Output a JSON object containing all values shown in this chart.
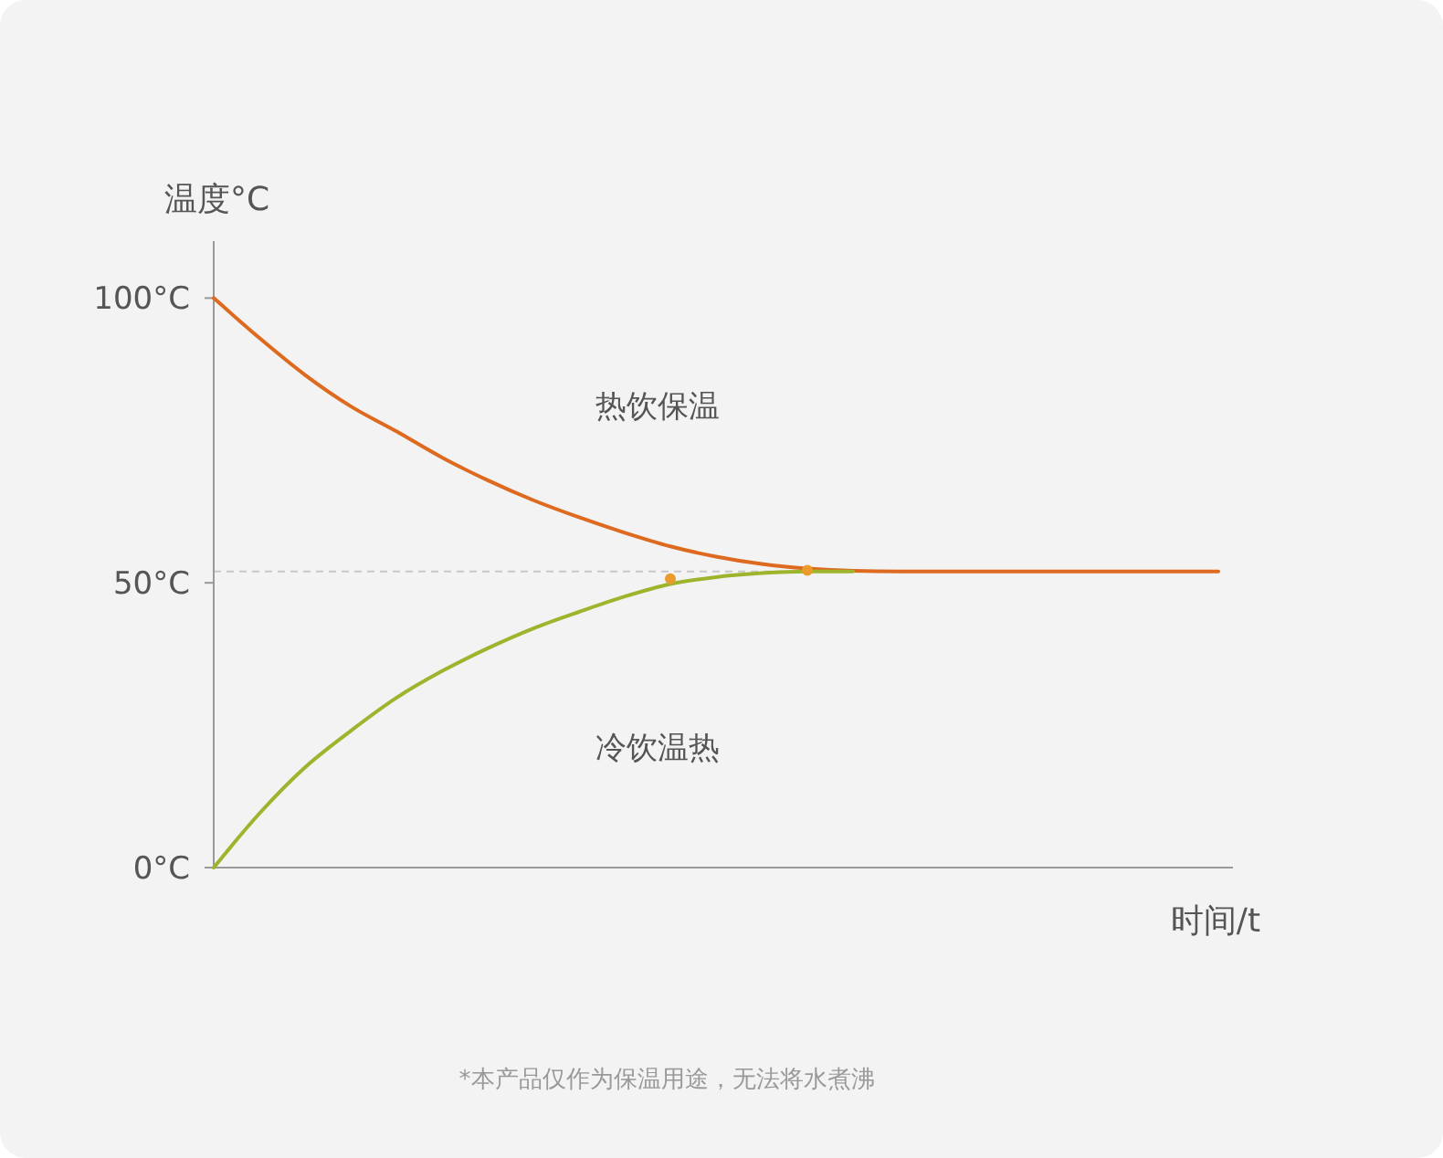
{
  "chart_data": {
    "type": "line",
    "ylabel": "温度°C",
    "xlabel": "时间/t",
    "categories": [
      null,
      null,
      null,
      null,
      null,
      null,
      null,
      null,
      null,
      null,
      null,
      null,
      null,
      null,
      null,
      null,
      null,
      null,
      null,
      null,
      null,
      null,
      null
    ],
    "ylim": [
      0,
      110
    ],
    "yticks": [
      {
        "value": 0,
        "label": "0°C"
      },
      {
        "value": 50,
        "label": "50°C"
      },
      {
        "value": 100,
        "label": "100°C"
      }
    ],
    "tick_labels": "y",
    "grid": false,
    "series": [
      {
        "color": "#dd6a1f",
        "values": [
          100,
          93,
          86.5,
          81,
          76.6,
          72,
          68,
          64.5,
          61.5,
          58.8,
          56.4,
          54.6,
          53.3,
          52.5,
          52.1,
          52,
          52,
          52,
          52,
          52,
          52,
          52,
          52
        ]
      },
      {
        "color": "#9cb52c",
        "values": [
          0,
          9.5,
          17.6,
          24,
          29.8,
          34.5,
          38.5,
          42,
          44.9,
          47.6,
          49.8,
          51,
          51.7,
          52,
          52,
          null,
          null,
          null,
          null,
          null,
          null,
          null,
          null
        ]
      },
      {
        "type": "scatter",
        "marker": "circle",
        "color": "#eb9a2c",
        "values": [
          null,
          null,
          null,
          null,
          null,
          null,
          null,
          null,
          null,
          null,
          50.7,
          null,
          null,
          52.2,
          null,
          null,
          null,
          null,
          null,
          null,
          null,
          null,
          null
        ]
      }
    ],
    "ref_lines": [
      {
        "axis": "y",
        "value": 52,
        "color": "#c8c8c8",
        "line_style": "dashed"
      }
    ],
    "annotations": [
      "热饮保温",
      "冷饮温热",
      "*本产品仅作为保温用途，无法将水煮沸"
    ]
  }
}
